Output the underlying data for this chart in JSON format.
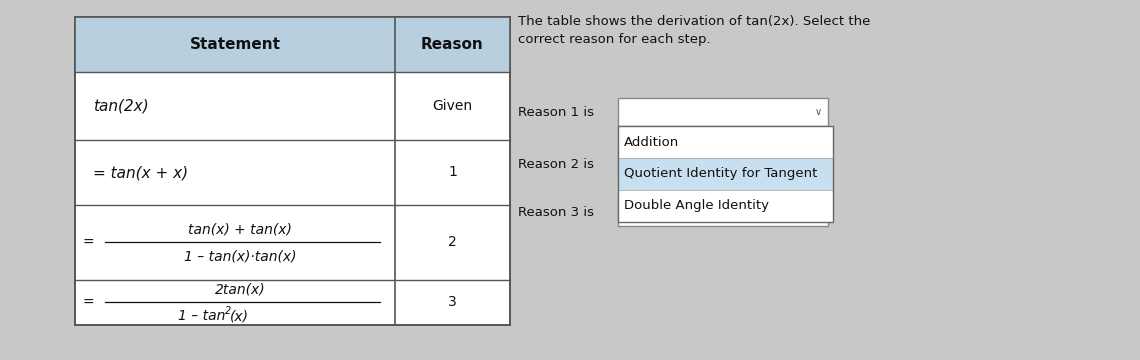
{
  "title_text": "The table shows the derivation of tan(2x). Select the\ncorrect reason for each step.",
  "bg_color": "#c8c8c8",
  "table_bg": "#ffffff",
  "header_bg": "#b8cfe0",
  "header": [
    "Statement",
    "Reason"
  ],
  "dropdown_items": [
    "Addition",
    "Quotient Identity for Tangent",
    "Double Angle Identity"
  ],
  "dropdown_item_bg": [
    "#ffffff",
    "#c8dff0",
    "#ffffff"
  ],
  "input_box_color": "#ffffff",
  "input_border": "#888888"
}
